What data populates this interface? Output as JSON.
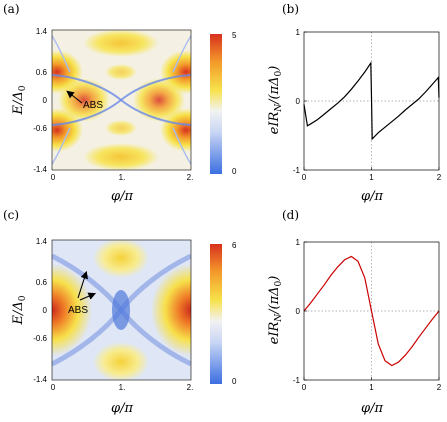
{
  "colors": {
    "map_low": "#3b6fe0",
    "map_mid": "#f2f2f2",
    "map_yellow": "#f7e24a",
    "map_high": "#d7301f",
    "curve_b": "#000000",
    "curve_d": "#cc0000"
  },
  "chart_data": [
    {
      "panel": "(a)",
      "type": "heatmap",
      "xlabel": "φ/π",
      "ylabel": "E/Δ0",
      "xlim": [
        0,
        2
      ],
      "ylim": [
        -1.4,
        1.4
      ],
      "xticks": [
        "0",
        "1.",
        "2."
      ],
      "yticks": [
        "1.4",
        "0.6",
        "0",
        "-0.6",
        "-1.4"
      ],
      "colorbar": {
        "min": 0,
        "max": 5,
        "ticks": [
          "5",
          "0"
        ]
      },
      "annotation": "ABS"
    },
    {
      "panel": "(b)",
      "type": "line",
      "xlabel": "φ/π",
      "ylabel": "eIR_N/(πΔ0)",
      "xlim": [
        0,
        2
      ],
      "ylim": [
        -1,
        1
      ],
      "xticks": [
        "0",
        "1",
        "2"
      ],
      "yticks": [
        "1",
        "0",
        "-1"
      ],
      "grid": "dotted zero lines",
      "x": [
        0,
        0.05,
        0.1,
        0.2,
        0.3,
        0.4,
        0.5,
        0.6,
        0.7,
        0.8,
        0.9,
        0.99,
        1.0,
        1.01,
        1.1,
        1.2,
        1.3,
        1.4,
        1.5,
        1.6,
        1.7,
        1.8,
        1.9,
        1.99,
        2.0
      ],
      "y": [
        -0.05,
        -0.36,
        -0.33,
        -0.27,
        -0.19,
        -0.11,
        -0.03,
        0.06,
        0.17,
        0.29,
        0.42,
        0.55,
        0.05,
        -0.55,
        -0.46,
        -0.38,
        -0.3,
        -0.22,
        -0.13,
        -0.05,
        0.03,
        0.13,
        0.24,
        0.34,
        0.05
      ]
    },
    {
      "panel": "(c)",
      "type": "heatmap",
      "xlabel": "φ/π",
      "ylabel": "E/Δ0",
      "xlim": [
        0,
        2
      ],
      "ylim": [
        -1.4,
        1.4
      ],
      "xticks": [
        "0",
        "1.",
        "2."
      ],
      "yticks": [
        "1.4",
        "0.6",
        "0",
        "-0.6",
        "-1.4"
      ],
      "colorbar": {
        "min": 0,
        "max": 6,
        "ticks": [
          "6",
          "0"
        ]
      },
      "annotation": "ABS"
    },
    {
      "panel": "(d)",
      "type": "line",
      "xlabel": "φ/π",
      "ylabel": "eIR_N/(πΔ0)",
      "xlim": [
        0,
        2
      ],
      "ylim": [
        -1,
        1
      ],
      "xticks": [
        "0",
        "1",
        "2"
      ],
      "yticks": [
        "1",
        "0",
        "-1"
      ],
      "grid": "dotted zero lines",
      "x": [
        0,
        0.1,
        0.2,
        0.3,
        0.4,
        0.5,
        0.6,
        0.7,
        0.8,
        0.9,
        1.0,
        1.1,
        1.2,
        1.3,
        1.4,
        1.5,
        1.6,
        1.7,
        1.8,
        1.9,
        2.0
      ],
      "y": [
        0.0,
        0.12,
        0.25,
        0.38,
        0.52,
        0.64,
        0.74,
        0.79,
        0.72,
        0.48,
        0.0,
        -0.48,
        -0.72,
        -0.79,
        -0.74,
        -0.64,
        -0.52,
        -0.38,
        -0.25,
        -0.12,
        0.0
      ]
    }
  ]
}
